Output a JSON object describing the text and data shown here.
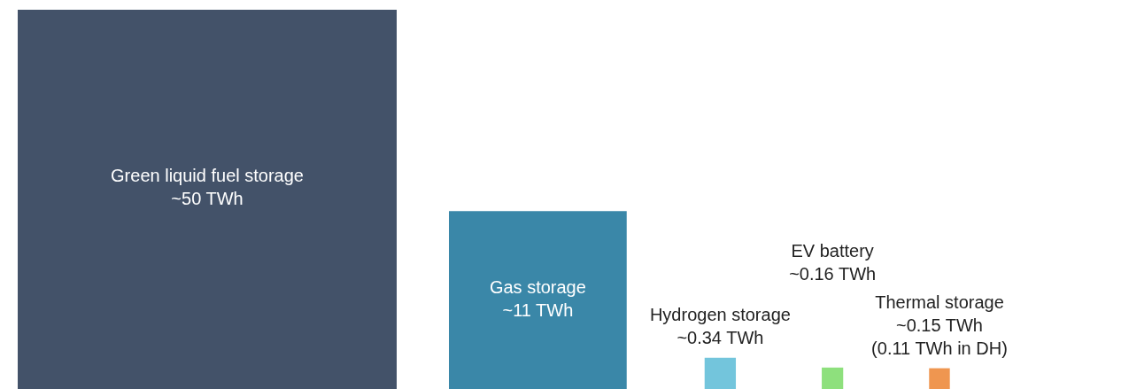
{
  "chart_data": {
    "type": "other",
    "categories": [
      "Green liquid fuel storage",
      "Gas storage",
      "Hydrogen storage",
      "EV battery",
      "Thermal storage"
    ],
    "values": [
      50,
      11,
      0.34,
      0.16,
      0.15
    ],
    "colors": [
      "#435269",
      "#3a87a8",
      "#73c5dc",
      "#8ee07d",
      "#ef9650"
    ],
    "value_labels": [
      "~50 TWh",
      "~11 TWh",
      "~0.34 TWh",
      "~0.16 TWh",
      "~0.15 TWh"
    ],
    "annotations": [
      {
        "text": "(0.11 TWh in DH)",
        "x": "Thermal storage"
      }
    ]
  }
}
